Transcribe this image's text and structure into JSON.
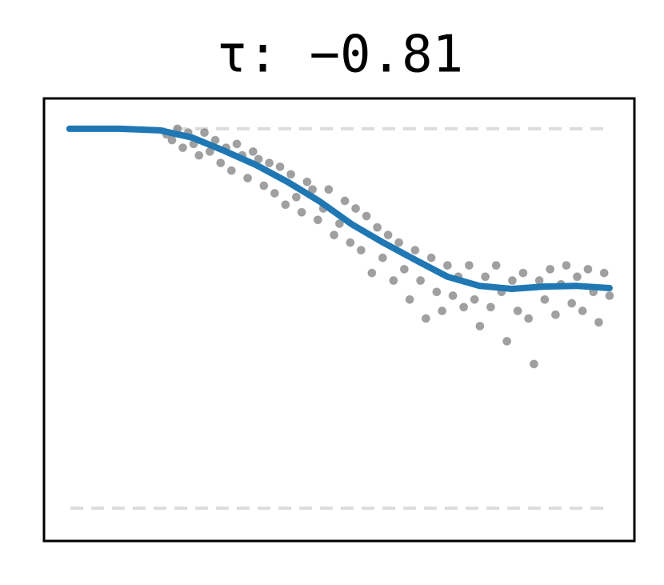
{
  "chart_data": {
    "type": "scatter",
    "title": "τ: −0.81",
    "xlim": [
      -0.047,
      1.046
    ],
    "ylim": [
      -0.0865,
      1.08
    ],
    "hlines": [
      0,
      1
    ],
    "hline_color": "#dcdcdc",
    "series": [
      {
        "type": "scatter",
        "color": "#808080",
        "x": [
          0.18,
          0.19,
          0.2,
          0.21,
          0.22,
          0.23,
          0.24,
          0.25,
          0.26,
          0.27,
          0.28,
          0.29,
          0.3,
          0.31,
          0.32,
          0.33,
          0.34,
          0.35,
          0.36,
          0.37,
          0.38,
          0.39,
          0.4,
          0.41,
          0.42,
          0.43,
          0.44,
          0.45,
          0.46,
          0.47,
          0.48,
          0.49,
          0.5,
          0.51,
          0.52,
          0.53,
          0.54,
          0.55,
          0.56,
          0.57,
          0.58,
          0.59,
          0.6,
          0.61,
          0.62,
          0.63,
          0.64,
          0.65,
          0.66,
          0.67,
          0.68,
          0.69,
          0.7,
          0.71,
          0.72,
          0.73,
          0.74,
          0.75,
          0.76,
          0.77,
          0.78,
          0.79,
          0.8,
          0.81,
          0.82,
          0.83,
          0.84,
          0.85,
          0.86,
          0.87,
          0.88,
          0.89,
          0.9,
          0.91,
          0.92,
          0.93,
          0.94,
          0.95,
          0.96,
          0.97,
          0.98,
          0.99,
          1.0
        ],
        "values": [
          0.985,
          0.97,
          1.0,
          0.95,
          0.99,
          0.96,
          0.93,
          0.99,
          0.94,
          0.97,
          0.91,
          0.95,
          0.89,
          0.96,
          0.93,
          0.87,
          0.94,
          0.92,
          0.85,
          0.91,
          0.83,
          0.9,
          0.8,
          0.88,
          0.82,
          0.78,
          0.86,
          0.84,
          0.76,
          0.79,
          0.84,
          0.72,
          0.75,
          0.81,
          0.7,
          0.79,
          0.68,
          0.77,
          0.62,
          0.74,
          0.66,
          0.72,
          0.6,
          0.7,
          0.63,
          0.55,
          0.68,
          0.6,
          0.5,
          0.66,
          0.57,
          0.52,
          0.64,
          0.56,
          0.61,
          0.53,
          0.64,
          0.55,
          0.48,
          0.61,
          0.53,
          0.64,
          0.57,
          0.44,
          0.6,
          0.52,
          0.62,
          0.5,
          0.38,
          0.6,
          0.55,
          0.63,
          0.51,
          0.59,
          0.64,
          0.54,
          0.61,
          0.52,
          0.63,
          0.57,
          0.49,
          0.62,
          0.56
        ]
      },
      {
        "type": "line",
        "color": "#1f77b4",
        "x": [
          0,
          0.093,
          0.167,
          0.227,
          0.285,
          0.345,
          0.404,
          0.464,
          0.522,
          0.581,
          0.641,
          0.7,
          0.759,
          0.819,
          0.878,
          0.938,
          1
        ],
        "values": [
          1,
          1,
          0.996,
          0.977,
          0.943,
          0.905,
          0.86,
          0.808,
          0.749,
          0.7,
          0.654,
          0.61,
          0.586,
          0.578,
          0.584,
          0.586,
          0.58
        ]
      }
    ]
  }
}
